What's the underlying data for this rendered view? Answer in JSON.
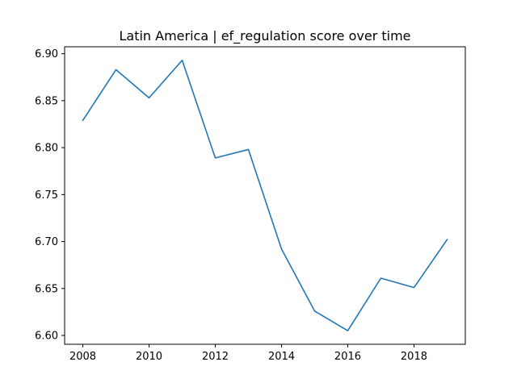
{
  "chart_data": {
    "type": "line",
    "title": "Latin America | ef_regulation score over time",
    "xlabel": "",
    "ylabel": "",
    "x": [
      2008,
      2009,
      2010,
      2011,
      2012,
      2013,
      2014,
      2015,
      2016,
      2017,
      2018,
      2019
    ],
    "series": [
      {
        "values": [
          6.829,
          6.883,
          6.853,
          6.893,
          6.789,
          6.798,
          6.692,
          6.626,
          6.605,
          6.661,
          6.651,
          6.702
        ],
        "color": "#1f77b4"
      }
    ],
    "xlim": [
      2007.45,
      2019.55
    ],
    "ylim": [
      6.5906,
      6.9074
    ],
    "x_ticks": [
      "2008",
      "2010",
      "2012",
      "2014",
      "2016",
      "2018"
    ],
    "y_ticks": [
      "6.60",
      "6.65",
      "6.70",
      "6.75",
      "6.80",
      "6.85",
      "6.90"
    ],
    "grid": false,
    "legend": "none"
  }
}
